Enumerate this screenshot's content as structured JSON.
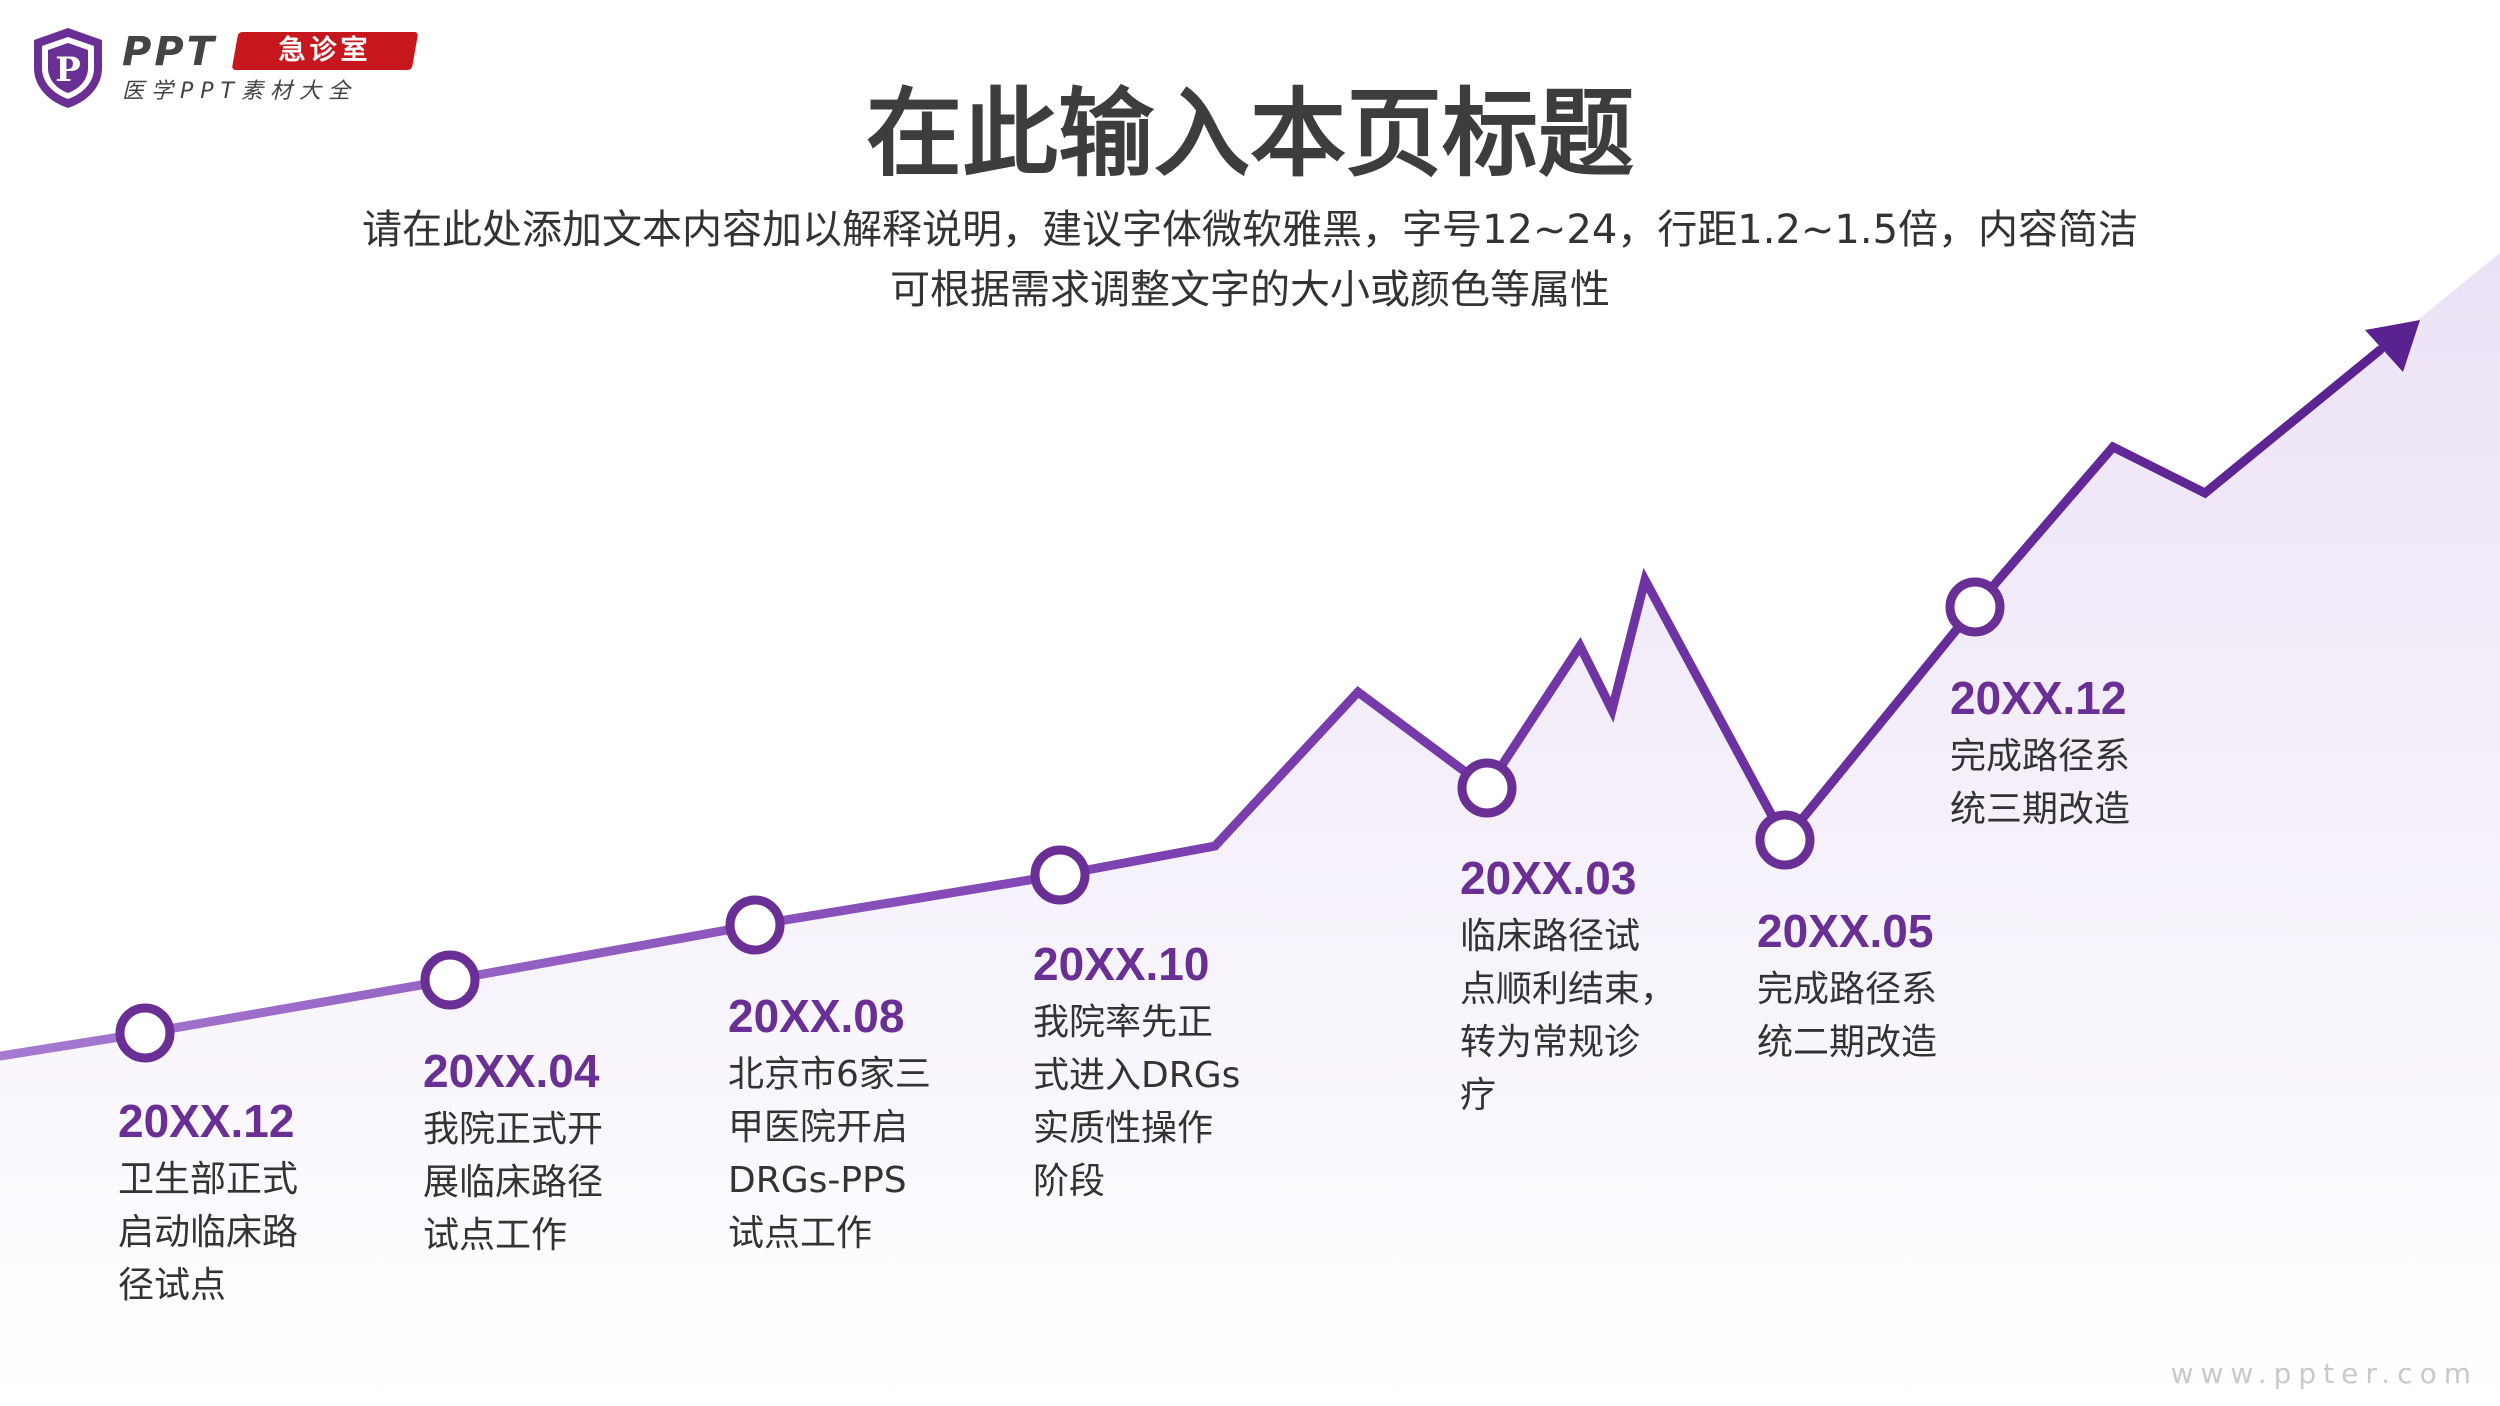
{
  "logo": {
    "shield_letter": "P",
    "word": "PPT",
    "badge": "急诊室",
    "sub": "医学PPT素材大全"
  },
  "title": "在此输入本页标题",
  "subtitle": {
    "line1": "请在此处添加文本内容加以解释说明，建议字体微软雅黑，字号12~24，行距1.2~1.5倍，内容简洁",
    "line2": "可根据需求调整文字的大小或颜色等属性"
  },
  "milestones": [
    {
      "date": "20XX.12",
      "lines": [
        "卫生部正式",
        "启动临床路",
        "径试点"
      ]
    },
    {
      "date": "20XX.04",
      "lines": [
        "我院正式开",
        "展临床路径",
        "试点工作"
      ]
    },
    {
      "date": "20XX.08",
      "lines": [
        "北京市6家三",
        "甲医院开启",
        "DRGs-PPS",
        "试点工作"
      ]
    },
    {
      "date": "20XX.10",
      "lines": [
        "我院率先正",
        "式进入DRGs",
        "实质性操作",
        "阶段"
      ]
    },
    {
      "date": "20XX.03",
      "lines": [
        "临床路径试",
        "点顺利结束，",
        "转为常规诊",
        "疗"
      ]
    },
    {
      "date": "20XX.05",
      "lines": [
        "完成路径系",
        "统二期改造"
      ]
    },
    {
      "date": "20XX.12",
      "lines": [
        "完成路径系",
        "统三期改造"
      ]
    }
  ],
  "watermark": "www.ppter.com",
  "colors": {
    "accent": "#6a2f95",
    "line_start": "#9b6cc9",
    "line_end": "#5e2590",
    "area": "#f1eaf8",
    "badge": "#c8161d",
    "title": "#3d3d3d"
  }
}
